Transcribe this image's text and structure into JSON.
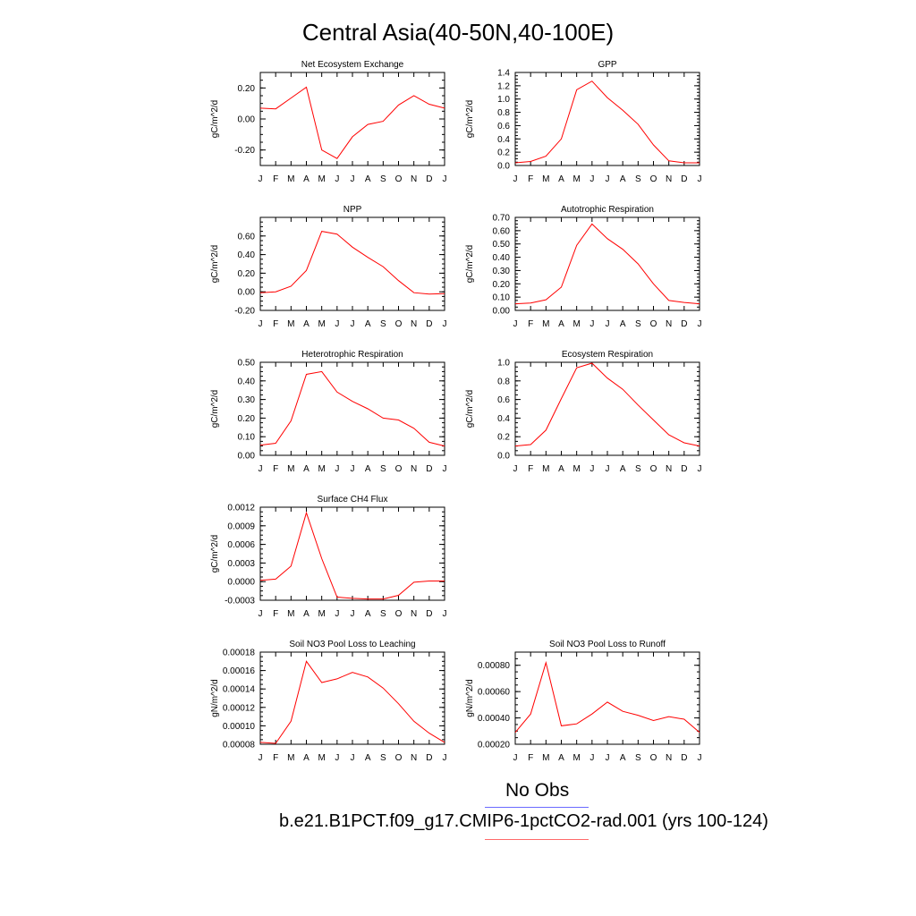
{
  "title": "Central Asia(40-50N,40-100E)",
  "months": [
    "J",
    "F",
    "M",
    "A",
    "M",
    "J",
    "J",
    "A",
    "S",
    "O",
    "N",
    "D",
    "J"
  ],
  "legend": {
    "items": [
      {
        "label": "No Obs",
        "color": "#6a6aff"
      },
      {
        "label": "b.e21.B1PCT.f09_g17.CMIP6-1pctCO2-rad.001 (yrs 100-124)",
        "color": "#ff0000"
      }
    ]
  },
  "colors": {
    "series": "#ff0000",
    "axis": "#000000"
  },
  "chart_data": [
    {
      "type": "line",
      "title": "Net Ecosystem Exchange",
      "ylabel": "gC/m^2/d",
      "ylim": [
        -0.3,
        0.3
      ],
      "yticks": [
        -0.2,
        0.0,
        0.2
      ],
      "ytick_labels": [
        "-0.20",
        "0.00",
        "0.20"
      ],
      "series": [
        {
          "values": [
            0.07,
            0.065,
            0.135,
            0.205,
            -0.2,
            -0.255,
            -0.115,
            -0.035,
            -0.015,
            0.09,
            0.15,
            0.095,
            0.07
          ]
        }
      ]
    },
    {
      "type": "line",
      "title": "GPP",
      "ylabel": "gC/m^2/d",
      "ylim": [
        0.0,
        1.4
      ],
      "yticks": [
        0.0,
        0.2,
        0.4,
        0.6,
        0.8,
        1.0,
        1.2,
        1.4
      ],
      "ytick_labels": [
        "0.0",
        "0.2",
        "0.4",
        "0.6",
        "0.8",
        "1.0",
        "1.2",
        "1.4"
      ],
      "series": [
        {
          "values": [
            0.04,
            0.06,
            0.14,
            0.4,
            1.14,
            1.27,
            1.02,
            0.83,
            0.62,
            0.31,
            0.07,
            0.04,
            0.04
          ]
        }
      ]
    },
    {
      "type": "line",
      "title": "NPP",
      "ylabel": "gC/m^2/d",
      "ylim": [
        -0.2,
        0.8
      ],
      "yticks": [
        -0.2,
        0.0,
        0.2,
        0.4,
        0.6
      ],
      "ytick_labels": [
        "-0.20",
        "0.00",
        "0.20",
        "0.40",
        "0.60"
      ],
      "series": [
        {
          "values": [
            -0.01,
            0.0,
            0.06,
            0.23,
            0.65,
            0.62,
            0.48,
            0.37,
            0.27,
            0.12,
            -0.01,
            -0.025,
            -0.02
          ]
        }
      ]
    },
    {
      "type": "line",
      "title": "Autotrophic Respiration",
      "ylabel": "gC/m^2/d",
      "ylim": [
        0.0,
        0.7
      ],
      "yticks": [
        0.0,
        0.1,
        0.2,
        0.3,
        0.4,
        0.5,
        0.6,
        0.7
      ],
      "ytick_labels": [
        "0.00",
        "0.10",
        "0.20",
        "0.30",
        "0.40",
        "0.50",
        "0.60",
        "0.70"
      ],
      "series": [
        {
          "values": [
            0.05,
            0.055,
            0.08,
            0.175,
            0.49,
            0.65,
            0.54,
            0.46,
            0.35,
            0.2,
            0.075,
            0.06,
            0.05
          ]
        }
      ]
    },
    {
      "type": "line",
      "title": "Heterotrophic Respiration",
      "ylabel": "gC/m^2/d",
      "ylim": [
        0.0,
        0.5
      ],
      "yticks": [
        0.0,
        0.1,
        0.2,
        0.3,
        0.4,
        0.5
      ],
      "ytick_labels": [
        "0.00",
        "0.10",
        "0.20",
        "0.30",
        "0.40",
        "0.50"
      ],
      "series": [
        {
          "values": [
            0.055,
            0.065,
            0.185,
            0.435,
            0.45,
            0.34,
            0.29,
            0.25,
            0.2,
            0.19,
            0.145,
            0.07,
            0.05
          ]
        }
      ]
    },
    {
      "type": "line",
      "title": "Ecosystem Respiration",
      "ylabel": "gC/m^2/d",
      "ylim": [
        0.0,
        1.0
      ],
      "yticks": [
        0.0,
        0.2,
        0.4,
        0.6,
        0.8,
        1.0
      ],
      "ytick_labels": [
        "0.0",
        "0.2",
        "0.4",
        "0.6",
        "0.8",
        "1.0"
      ],
      "series": [
        {
          "values": [
            0.1,
            0.115,
            0.27,
            0.61,
            0.94,
            0.99,
            0.83,
            0.71,
            0.54,
            0.38,
            0.22,
            0.135,
            0.1
          ]
        }
      ]
    },
    {
      "type": "line",
      "title": "Surface CH4 Flux",
      "ylabel": "gC/m^2/d",
      "ylim": [
        -0.0003,
        0.0012
      ],
      "yticks": [
        -0.0003,
        0.0,
        0.0003,
        0.0006,
        0.0009,
        0.0012
      ],
      "ytick_labels": [
        "-0.0003",
        "0.0000",
        "0.0003",
        "0.0006",
        "0.0009",
        "0.0012"
      ],
      "series": [
        {
          "values": [
            2e-05,
            4e-05,
            0.00025,
            0.00111,
            0.00037,
            -0.00025,
            -0.00027,
            -0.00028,
            -0.00028,
            -0.00022,
            -1e-05,
            1e-05,
            1e-05
          ]
        }
      ]
    },
    {
      "type": "line",
      "title": "Soil NO3 Pool Loss to Leaching",
      "ylabel": "gN/m^2/d",
      "ylim": [
        8e-05,
        0.00018
      ],
      "yticks": [
        8e-05,
        0.0001,
        0.00012,
        0.00014,
        0.00016,
        0.00018
      ],
      "ytick_labels": [
        "0.00008",
        "0.00010",
        "0.00012",
        "0.00014",
        "0.00016",
        "0.00018"
      ],
      "series": [
        {
          "values": [
            8.2e-05,
            8.1e-05,
            0.000105,
            0.00017,
            0.000147,
            0.000151,
            0.000158,
            0.000153,
            0.000141,
            0.000124,
            0.000105,
            9.2e-05,
            8.2e-05
          ]
        }
      ]
    },
    {
      "type": "line",
      "title": "Soil NO3 Pool Loss to Runoff",
      "ylabel": "gN/m^2/d",
      "ylim": [
        0.0002,
        0.0009
      ],
      "yticks": [
        0.0002,
        0.0004,
        0.0006,
        0.0008
      ],
      "ytick_labels": [
        "0.00020",
        "0.00040",
        "0.00060",
        "0.00080"
      ],
      "series": [
        {
          "values": [
            0.00029,
            0.00043,
            0.00082,
            0.00034,
            0.000355,
            0.00043,
            0.00052,
            0.00045,
            0.00042,
            0.00038,
            0.00041,
            0.00039,
            0.00029
          ]
        }
      ]
    }
  ]
}
